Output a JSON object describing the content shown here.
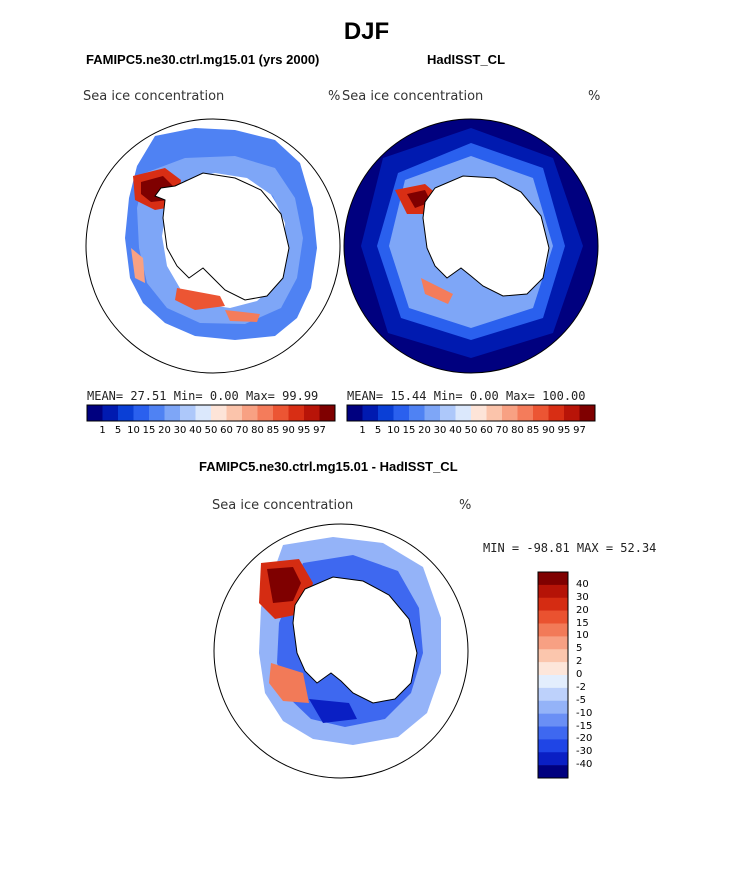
{
  "page": {
    "title": "DJF",
    "left_model_title": "FAMIPC5.ne30.ctrl.mg15.01 (yrs 2000)",
    "right_model_title": "HadISST_CL",
    "diff_title": "FAMIPC5.ne30.ctrl.mg15.01 - HadISST_CL"
  },
  "colors": {
    "abs_scale": [
      "#00007f",
      "#001ab0",
      "#0a3fd6",
      "#2a60ee",
      "#4f82f3",
      "#7ea6f7",
      "#adc8fa",
      "#dbe8fc",
      "#fde4d8",
      "#fbc4ab",
      "#f8a183",
      "#f47c5b",
      "#ec5533",
      "#d82e14",
      "#b81408",
      "#7f0000"
    ],
    "diff_scale": [
      "#00007f",
      "#0a1fc4",
      "#1f45e6",
      "#3e68f0",
      "#6a8ff5",
      "#94b3f8",
      "#bdd1fb",
      "#e3eefd",
      "#fde6da",
      "#fbc6ad",
      "#f7a083",
      "#f27a58",
      "#ea5230",
      "#d52c12",
      "#b51307",
      "#7f0000"
    ],
    "land": "#ffffff",
    "outline": "#000000"
  },
  "chart_data": [
    {
      "type": "heatmap",
      "name": "model-map",
      "projection": "south-polar-stereographic",
      "panel_title": "FAMIPC5.ne30.ctrl.mg15.01 (yrs 2000)",
      "field_label": "Sea ice concentration",
      "units": "%",
      "stats": {
        "mean_label": "MEAN=",
        "mean": "27.51",
        "min_label": "Min=",
        "min": "0.00",
        "max_label": "Max=",
        "max": "99.99"
      },
      "colorbar_ticks": [
        "1",
        "5",
        "10",
        "15",
        "20",
        "30",
        "40",
        "50",
        "60",
        "70",
        "80",
        "85",
        "90",
        "95",
        "97"
      ]
    },
    {
      "type": "heatmap",
      "name": "obs-map",
      "projection": "south-polar-stereographic",
      "panel_title": "HadISST_CL",
      "field_label": "Sea ice concentration",
      "units": "%",
      "stats": {
        "mean_label": "MEAN=",
        "mean": "15.44",
        "min_label": "Min=",
        "min": "0.00",
        "max_label": "Max=",
        "max": "100.00"
      },
      "colorbar_ticks": [
        "1",
        "5",
        "10",
        "15",
        "20",
        "30",
        "40",
        "50",
        "60",
        "70",
        "80",
        "85",
        "90",
        "95",
        "97"
      ]
    },
    {
      "type": "heatmap",
      "name": "difference-map",
      "projection": "south-polar-stereographic",
      "panel_title": "FAMIPC5.ne30.ctrl.mg15.01 - HadISST_CL",
      "field_label": "Sea ice concentration",
      "units": "%",
      "range_text": "MIN = -98.81 MAX =  52.34",
      "colorbar_ticks": [
        "40",
        "30",
        "20",
        "15",
        "10",
        "5",
        "2",
        "0",
        "-2",
        "-5",
        "-10",
        "-15",
        "-20",
        "-30",
        "-40"
      ]
    }
  ]
}
